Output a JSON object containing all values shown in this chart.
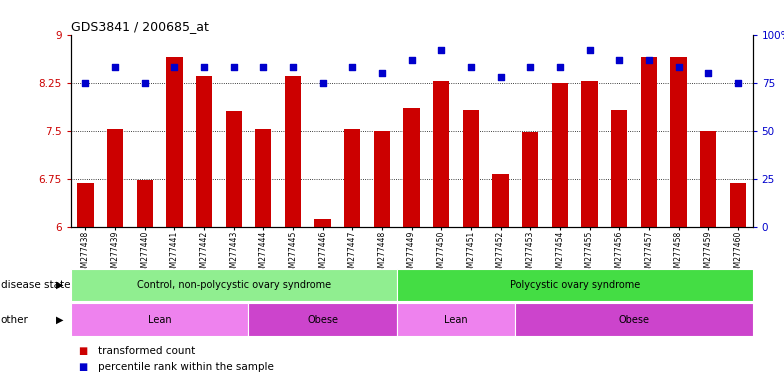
{
  "title": "GDS3841 / 200685_at",
  "samples": [
    "GSM277438",
    "GSM277439",
    "GSM277440",
    "GSM277441",
    "GSM277442",
    "GSM277443",
    "GSM277444",
    "GSM277445",
    "GSM277446",
    "GSM277447",
    "GSM277448",
    "GSM277449",
    "GSM277450",
    "GSM277451",
    "GSM277452",
    "GSM277453",
    "GSM277454",
    "GSM277455",
    "GSM277456",
    "GSM277457",
    "GSM277458",
    "GSM277459",
    "GSM277460"
  ],
  "bar_values": [
    6.68,
    7.53,
    6.72,
    8.65,
    8.35,
    7.8,
    7.52,
    8.35,
    6.12,
    7.52,
    7.5,
    7.85,
    8.28,
    7.82,
    6.82,
    7.48,
    8.25,
    8.28,
    7.82,
    8.65,
    8.65,
    7.5,
    6.68
  ],
  "blue_values": [
    75,
    83,
    75,
    83,
    83,
    83,
    83,
    83,
    75,
    83,
    80,
    87,
    92,
    83,
    78,
    83,
    83,
    92,
    87,
    87,
    83,
    80,
    75
  ],
  "ylim_left": [
    6,
    9
  ],
  "ylim_right": [
    0,
    100
  ],
  "yticks_left": [
    6,
    6.75,
    7.5,
    8.25,
    9
  ],
  "ytick_labels_left": [
    "6",
    "6.75",
    "7.5",
    "8.25",
    "9"
  ],
  "yticks_right": [
    0,
    25,
    50,
    75,
    100
  ],
  "ytick_labels_right": [
    "0",
    "25",
    "50",
    "75",
    "100%"
  ],
  "bar_color": "#cc0000",
  "dot_color": "#0000cc",
  "hline_values": [
    6.75,
    7.5,
    8.25
  ],
  "disease_state_groups": [
    {
      "label": "Control, non-polycystic ovary syndrome",
      "start": 0,
      "end": 11,
      "color": "#90ee90"
    },
    {
      "label": "Polycystic ovary syndrome",
      "start": 11,
      "end": 23,
      "color": "#44dd44"
    }
  ],
  "other_groups": [
    {
      "label": "Lean",
      "start": 0,
      "end": 6,
      "color": "#ee82ee"
    },
    {
      "label": "Obese",
      "start": 6,
      "end": 11,
      "color": "#cc44cc"
    },
    {
      "label": "Lean",
      "start": 11,
      "end": 15,
      "color": "#ee82ee"
    },
    {
      "label": "Obese",
      "start": 15,
      "end": 23,
      "color": "#cc44cc"
    }
  ],
  "disease_state_label": "disease state",
  "other_label": "other",
  "bar_width": 0.55,
  "n_samples": 23
}
